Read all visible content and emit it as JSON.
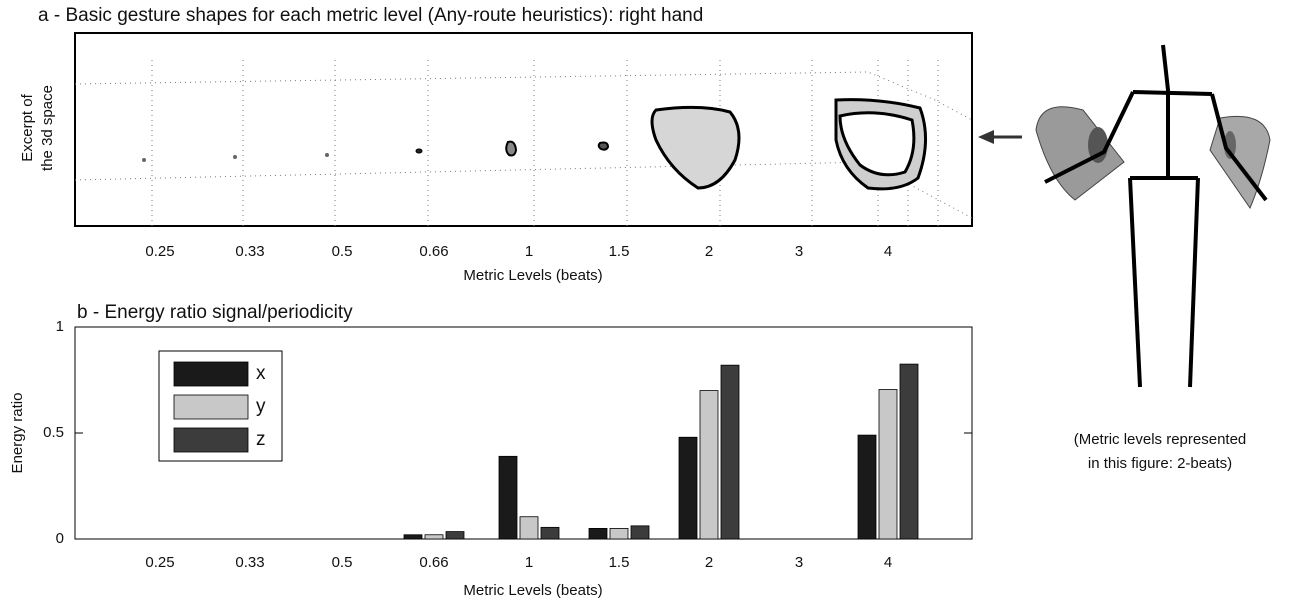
{
  "chart_data": [
    {
      "type": "gesture",
      "title": "a - Basic gesture shapes for each metric level (Any-route heuristics):  right hand",
      "ylabel": [
        "Excerpt of",
        "the 3d space"
      ],
      "xlabel": "Metric Levels (beats)",
      "categories": [
        "0.25",
        "0.33",
        "0.5",
        "0.66",
        "1",
        "1.5",
        "2",
        "3",
        "4"
      ]
    },
    {
      "type": "bar",
      "title": "b - Energy ratio signal/periodicity",
      "ylabel": "Energy ratio",
      "xlabel": "Metric Levels (beats)",
      "categories": [
        "0.25",
        "0.33",
        "0.5",
        "0.66",
        "1",
        "1.5",
        "2",
        "3",
        "4"
      ],
      "series": [
        {
          "name": "x",
          "color": "#1a1a1a",
          "values": [
            0,
            0,
            0,
            0.02,
            0.39,
            0.05,
            0.48,
            0,
            0.49
          ]
        },
        {
          "name": "y",
          "color": "#c8c8c8",
          "values": [
            0,
            0,
            0,
            0.02,
            0.105,
            0.05,
            0.7,
            0,
            0.705
          ]
        },
        {
          "name": "z",
          "color": "#3c3c3c",
          "values": [
            0,
            0,
            0,
            0.035,
            0.055,
            0.062,
            0.82,
            0,
            0.825
          ]
        }
      ],
      "ylim": [
        0,
        1
      ],
      "yticks": [
        0,
        0.5,
        1
      ],
      "legend": "upper-left"
    }
  ],
  "figure_note": [
    "(Metric levels represented",
    "in this figure: 2-beats)"
  ]
}
